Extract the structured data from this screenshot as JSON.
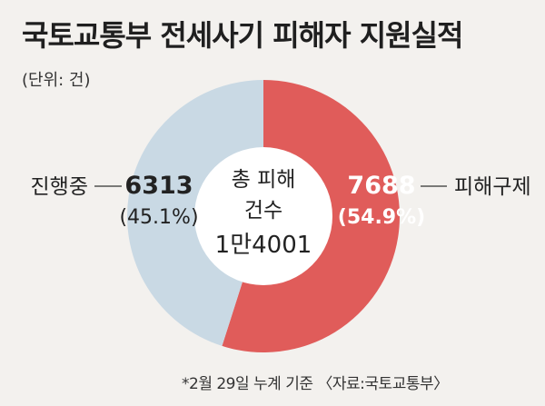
{
  "header": {
    "title": "국토교통부 전세사기 피해자 지원실적",
    "unit": "(단위: 건)"
  },
  "footer": {
    "note": "*2월 29일 누계 기준 〈자료:국토교통부〉"
  },
  "center_label": {
    "line1": "총 피해",
    "line2": "건수",
    "line3": "1만4001"
  },
  "chart_data": {
    "type": "pie",
    "total": 14001,
    "slices": [
      {
        "label": "피해구제",
        "value": 7688,
        "value_label": "7688",
        "percent_label": "(54.9%)",
        "color": "#e05c5a"
      },
      {
        "label": "진행중",
        "value": 6313,
        "value_label": "6313",
        "percent_label": "(45.1%)",
        "color": "#c9d9e4"
      }
    ],
    "value_label_colors": [
      "#ffffff",
      "#222222"
    ]
  }
}
